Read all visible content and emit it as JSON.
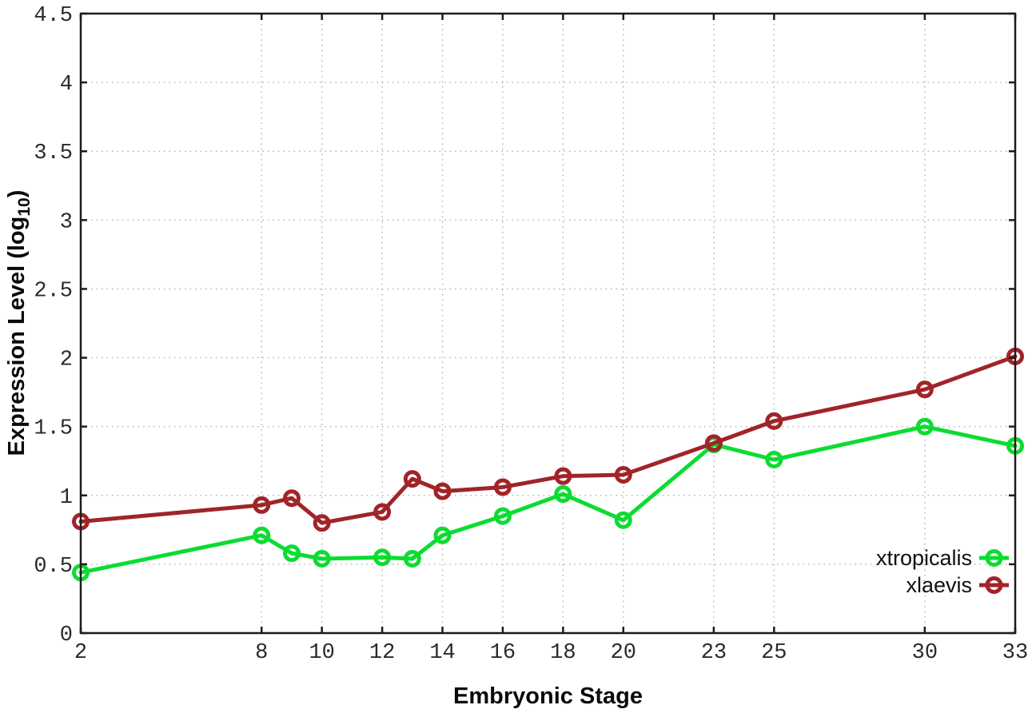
{
  "chart_data": {
    "type": "line",
    "title": "",
    "xlabel": "Embryonic Stage",
    "ylabel": {
      "pre": "Expression Level (log",
      "sub": "10",
      "post": ")"
    },
    "x": [
      2,
      8,
      9,
      10,
      12,
      13,
      14,
      16,
      18,
      20,
      23,
      25,
      30,
      33
    ],
    "x_ticks": [
      2,
      8,
      10,
      12,
      14,
      16,
      18,
      20,
      23,
      25,
      30,
      33
    ],
    "x_tick_labels": [
      "2",
      "8",
      "10",
      "12",
      "14",
      "16",
      "18",
      "20",
      "23",
      "25",
      "30",
      "33"
    ],
    "y_ticks": [
      0,
      0.5,
      1,
      1.5,
      2,
      2.5,
      3,
      3.5,
      4,
      4.5
    ],
    "y_tick_labels": [
      "0",
      "0.5",
      "1",
      "1.5",
      "2",
      "2.5",
      "3",
      "3.5",
      "4",
      "4.5"
    ],
    "xlim": [
      2,
      33
    ],
    "ylim": [
      0,
      4.5
    ],
    "grid": true,
    "legend_position": "inside bottom-right",
    "series": [
      {
        "name": "xtropicalis",
        "color": "#0cdc32",
        "values": [
          0.44,
          0.71,
          0.58,
          0.54,
          0.55,
          0.54,
          0.71,
          0.85,
          1.01,
          0.82,
          1.37,
          1.26,
          1.5,
          1.36
        ]
      },
      {
        "name": "xlaevis",
        "color": "#a02428",
        "values": [
          0.81,
          0.93,
          0.98,
          0.8,
          0.88,
          1.12,
          1.03,
          1.06,
          1.14,
          1.15,
          1.38,
          1.54,
          1.77,
          2.01
        ]
      }
    ]
  },
  "colors": {
    "background": "#ffffff",
    "border": "#1c1c1c",
    "grid": "#b4b4b4",
    "tick_text": "#2a2a2a"
  }
}
